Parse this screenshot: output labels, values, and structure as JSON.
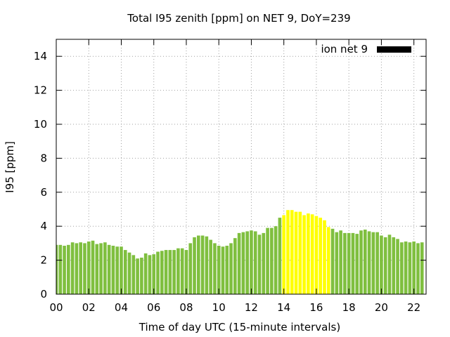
{
  "chart_data": {
    "type": "bar",
    "title": "Total I95 zenith [ppm] on NET 9, DoY=239",
    "xlabel": "Time of day UTC (15-minute intervals)",
    "ylabel": "I95 [ppm]",
    "ylim": [
      0,
      15
    ],
    "xlim": [
      0,
      22.75
    ],
    "grid": true,
    "legend": {
      "label": "ion net 9",
      "position": "top-right",
      "color": "#000000"
    },
    "x_ticks": [
      "00",
      "02",
      "04",
      "06",
      "08",
      "10",
      "12",
      "14",
      "16",
      "18",
      "20",
      "22"
    ],
    "y_ticks": [
      "0",
      "2",
      "4",
      "6",
      "8",
      "10",
      "12",
      "14"
    ],
    "colors": {
      "normal": "#7fbf3f",
      "highlight": "#ffff00"
    },
    "highlight_hours": [
      14.0,
      17.0
    ],
    "bar_interval_hours": 0.25,
    "values": [
      2.9,
      2.9,
      2.85,
      2.9,
      3.05,
      3.0,
      3.05,
      3.0,
      3.1,
      3.15,
      2.95,
      3.0,
      3.05,
      2.9,
      2.85,
      2.8,
      2.8,
      2.6,
      2.45,
      2.3,
      2.1,
      2.15,
      2.4,
      2.3,
      2.35,
      2.5,
      2.55,
      2.6,
      2.6,
      2.6,
      2.7,
      2.7,
      2.6,
      3.0,
      3.35,
      3.45,
      3.45,
      3.4,
      3.2,
      3.0,
      2.85,
      2.8,
      2.85,
      3.0,
      3.3,
      3.6,
      3.65,
      3.7,
      3.75,
      3.7,
      3.5,
      3.6,
      3.9,
      3.9,
      4.0,
      4.5,
      4.65,
      4.95,
      4.95,
      4.85,
      4.85,
      4.65,
      4.75,
      4.7,
      4.6,
      4.5,
      4.35,
      3.95,
      3.85,
      3.65,
      3.75,
      3.6,
      3.6,
      3.6,
      3.55,
      3.75,
      3.8,
      3.7,
      3.65,
      3.65,
      3.45,
      3.35,
      3.5,
      3.35,
      3.25,
      3.05,
      3.1,
      3.05,
      3.1,
      3.0,
      3.05
    ]
  }
}
